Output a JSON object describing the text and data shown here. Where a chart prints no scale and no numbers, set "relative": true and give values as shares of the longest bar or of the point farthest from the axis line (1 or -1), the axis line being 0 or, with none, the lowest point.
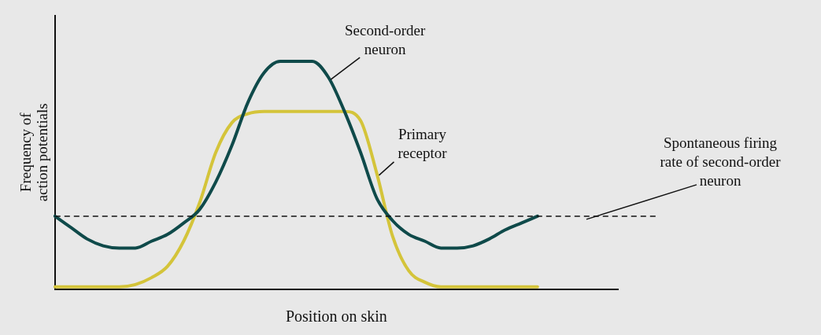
{
  "chart_data": {
    "type": "line",
    "relative": true,
    "xlabel": "Position on skin",
    "ylabel": "Frequency of\naction potentials",
    "categories": [
      null,
      null,
      null,
      null,
      null,
      null,
      null,
      null,
      null,
      null,
      null,
      null,
      null,
      null,
      null,
      null,
      null,
      null,
      null,
      null,
      null,
      null,
      null,
      null,
      null,
      null,
      null,
      null,
      null,
      null,
      null,
      null,
      null,
      null,
      null,
      null
    ],
    "series": [
      {
        "name": "Second-order\nneuron",
        "color": "#0f4a4a",
        "values": [
          0.32,
          0.27,
          0.22,
          0.19,
          0.18,
          0.18,
          0.21,
          0.24,
          0.29,
          0.35,
          0.47,
          0.63,
          0.82,
          0.95,
          1,
          1,
          1,
          0.93,
          0.78,
          0.6,
          0.4,
          0.3,
          0.24,
          0.21,
          0.18,
          0.18,
          0.19,
          0.22,
          0.26,
          0.29,
          0.32,
          null,
          null,
          null,
          null,
          null
        ]
      },
      {
        "name": "Primary\nreceptor",
        "color": "#d4c43a",
        "values": [
          0.01,
          0.01,
          0.01,
          0.01,
          0.01,
          0.02,
          0.05,
          0.1,
          0.21,
          0.38,
          0.6,
          0.73,
          0.77,
          0.78,
          0.78,
          0.78,
          0.78,
          0.78,
          0.78,
          0.74,
          0.51,
          0.23,
          0.08,
          0.03,
          0.01,
          0.01,
          0.01,
          0.01,
          0.01,
          0.01,
          0.01,
          null,
          null,
          null,
          null,
          null
        ]
      }
    ],
    "ref_lines": [
      {
        "axis": "y",
        "value": 0.32,
        "label": "Spontaneous firing\nrate of second-order\nneuron",
        "color": "#111111",
        "line_style": "dashed"
      }
    ],
    "grid": false,
    "legend": false,
    "marker": "none",
    "line_style": "solid"
  }
}
